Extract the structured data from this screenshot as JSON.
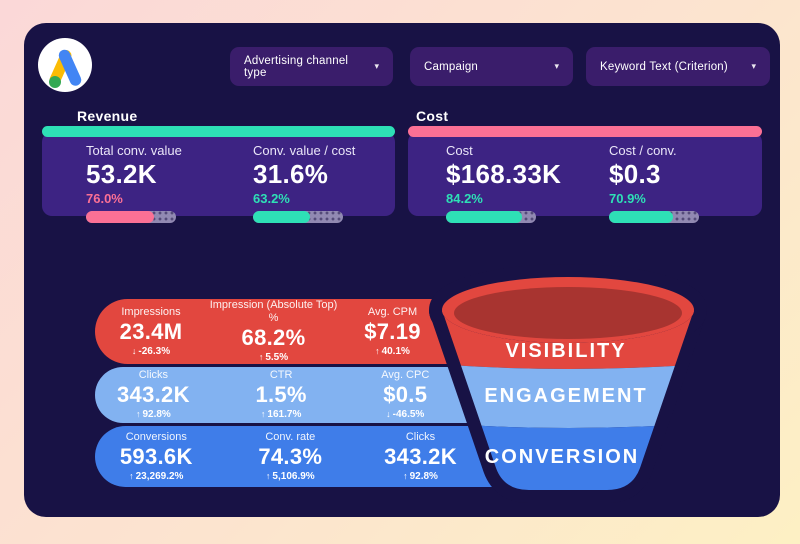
{
  "ui": {
    "caret": "▾"
  },
  "filters": [
    {
      "label": "Advertising channel type"
    },
    {
      "label": "Campaign"
    },
    {
      "label": "Keyword Text (Criterion)"
    }
  ],
  "cards": [
    {
      "title": "Revenue",
      "accent": "#2ee0b6",
      "metrics": [
        {
          "label": "Total conv. value",
          "value": "53.2K",
          "pct": "76.0%",
          "pct_color": "#fb7095",
          "bar_color": "#fb7095",
          "bar_width": "76%"
        },
        {
          "label": "Conv. value / cost",
          "value": "31.6%",
          "pct": "63.2%",
          "pct_color": "#2ee0b6",
          "bar_color": "#2ee0b6",
          "bar_width": "63%"
        }
      ]
    },
    {
      "title": "Cost",
      "accent": "#fb7095",
      "metrics": [
        {
          "label": "Cost",
          "value": "$168.33K",
          "pct": "84.2%",
          "pct_color": "#2ee0b6",
          "bar_color": "#2ee0b6",
          "bar_width": "84%"
        },
        {
          "label": "Cost / conv.",
          "value": "$0.3",
          "pct": "70.9%",
          "pct_color": "#2ee0b6",
          "bar_color": "#2ee0b6",
          "bar_width": "71%"
        }
      ]
    }
  ],
  "funnel": {
    "top_color": "#a83430",
    "stages": [
      {
        "label": "VISIBILITY",
        "color": "#e2473f"
      },
      {
        "label": "ENGAGEMENT",
        "color": "#82b2f1"
      },
      {
        "label": "CONVERSION",
        "color": "#3f7de9"
      }
    ],
    "rows": [
      {
        "color": "#e2473f",
        "metrics": [
          {
            "label": "Impressions",
            "value": "23.4M",
            "arrow": "↓",
            "change": "-26.3%"
          },
          {
            "label": "Impression (Absolute Top) %",
            "value": "68.2%",
            "arrow": "↑",
            "change": "5.5%"
          },
          {
            "label": "Avg. CPM",
            "value": "$7.19",
            "arrow": "↑",
            "change": "40.1%"
          }
        ]
      },
      {
        "color": "#82b2f1",
        "metrics": [
          {
            "label": "Clicks",
            "value": "343.2K",
            "arrow": "↑",
            "change": "92.8%"
          },
          {
            "label": "CTR",
            "value": "1.5%",
            "arrow": "↑",
            "change": "161.7%"
          },
          {
            "label": "Avg. CPC",
            "value": "$0.5",
            "arrow": "↓",
            "change": "-46.5%"
          }
        ]
      },
      {
        "color": "#3f7de9",
        "metrics": [
          {
            "label": "Conversions",
            "value": "593.6K",
            "arrow": "↑",
            "change": "23,269.2%"
          },
          {
            "label": "Conv. rate",
            "value": "74.3%",
            "arrow": "↑",
            "change": "5,106.9%"
          },
          {
            "label": "Clicks",
            "value": "343.2K",
            "arrow": "↑",
            "change": "92.8%"
          }
        ]
      }
    ]
  }
}
